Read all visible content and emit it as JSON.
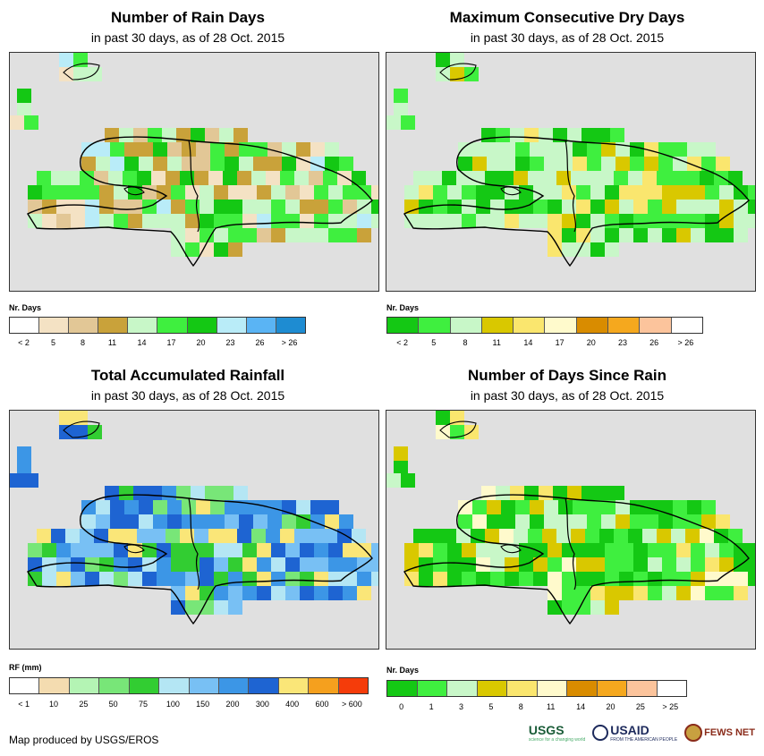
{
  "panels": [
    {
      "id": "rain-days",
      "title": "Number of Rain Days",
      "subtitle": "in past 30 days, as of 28 Oct. 2015",
      "legend_title": "Nr. Days",
      "legend_labels": [
        "< 2",
        "5",
        "8",
        "11",
        "14",
        "17",
        "20",
        "23",
        "26",
        "> 26"
      ],
      "legend_colors": [
        "#ffffff",
        "#f4e2c4",
        "#e2c796",
        "#c9a23a",
        "#c8f7c8",
        "#3fef3f",
        "#14c814",
        "#b9ecf8",
        "#5ab4f4",
        "#1e8cd2"
      ]
    },
    {
      "id": "max-dry-days",
      "title": "Maximum Consecutive Dry Days",
      "subtitle": "in past 30 days, as of 28 Oct. 2015",
      "legend_title": "Nr. Days",
      "legend_labels": [
        "< 2",
        "5",
        "8",
        "11",
        "14",
        "17",
        "20",
        "23",
        "26",
        "> 26"
      ],
      "legend_colors": [
        "#14c814",
        "#3fef3f",
        "#c8f7c8",
        "#d9c800",
        "#fae66e",
        "#fffacc",
        "#d98c00",
        "#f5a81e",
        "#fcc49c",
        "#ffffff"
      ]
    },
    {
      "id": "total-rainfall",
      "title": "Total Accumulated Rainfall",
      "subtitle": "in past 30 days, as of 28 Oct. 2015",
      "legend_title": "RF (mm)",
      "legend_labels": [
        "< 1",
        "10",
        "25",
        "50",
        "75",
        "100",
        "150",
        "200",
        "300",
        "400",
        "600",
        "> 600"
      ],
      "legend_colors": [
        "#ffffff",
        "#f4dcb0",
        "#b4f4b4",
        "#78e678",
        "#32cd32",
        "#b4e6f4",
        "#78c0f4",
        "#3c96e6",
        "#1e64d2",
        "#fae678",
        "#f5a01e",
        "#f53c0a"
      ]
    },
    {
      "id": "days-since-rain",
      "title": "Number of Days Since Rain",
      "subtitle": "in past 30 days, as of 28 Oct. 2015",
      "legend_title": "Nr. Days",
      "legend_labels": [
        "0",
        "1",
        "3",
        "5",
        "8",
        "11",
        "14",
        "20",
        "25",
        "> 25"
      ],
      "legend_colors": [
        "#14c814",
        "#3fef3f",
        "#c8f7c8",
        "#d9c800",
        "#fae66e",
        "#fffacc",
        "#d98c00",
        "#f5a81e",
        "#fcc49c",
        "#ffffff"
      ]
    }
  ],
  "credit": "Map produced by USGS/EROS",
  "logos": {
    "usgs": "USGS",
    "usgs_tagline": "science for a changing world",
    "usaid": "USAID",
    "usaid_tagline": "FROM THE AMERICAN PEOPLE",
    "fews": "FEWS NET"
  }
}
